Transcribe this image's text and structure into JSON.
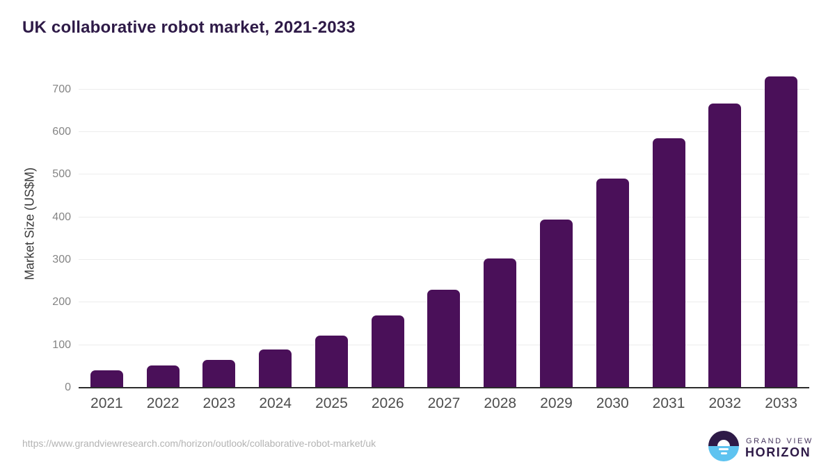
{
  "page": {
    "title": "UK collaborative robot market, 2021-2033",
    "source_url": "https://www.grandviewresearch.com/horizon/outlook/collaborative-robot-market/uk"
  },
  "logo": {
    "brand_top": "GRAND VIEW",
    "brand_bottom": "HORIZON",
    "mark_top_color": "#2e1a47",
    "mark_bottom_color": "#5ec3f0"
  },
  "colors": {
    "title": "#2e1a47",
    "bar": "#4a1059",
    "gridline": "#ececec",
    "axis_line": "#2b2b2b",
    "y_tick_label": "#848484",
    "x_tick_label": "#4d4d4d",
    "y_axis_title": "#3a3a3a",
    "source_url": "#b3b3b3"
  },
  "chart_data": {
    "type": "bar",
    "title": "UK collaborative robot market, 2021-2033",
    "categories": [
      "2021",
      "2022",
      "2023",
      "2024",
      "2025",
      "2026",
      "2027",
      "2028",
      "2029",
      "2030",
      "2031",
      "2032",
      "2033"
    ],
    "values": [
      41,
      52,
      66,
      89,
      123,
      170,
      230,
      304,
      394,
      490,
      586,
      667,
      730
    ],
    "xlabel": "",
    "ylabel": "Market Size (US$M)",
    "ylim": [
      0,
      750
    ],
    "yticks": [
      0,
      100,
      200,
      300,
      400,
      500,
      600,
      700
    ],
    "grid": true,
    "legend": "none",
    "bar_color": "#4a1059"
  }
}
